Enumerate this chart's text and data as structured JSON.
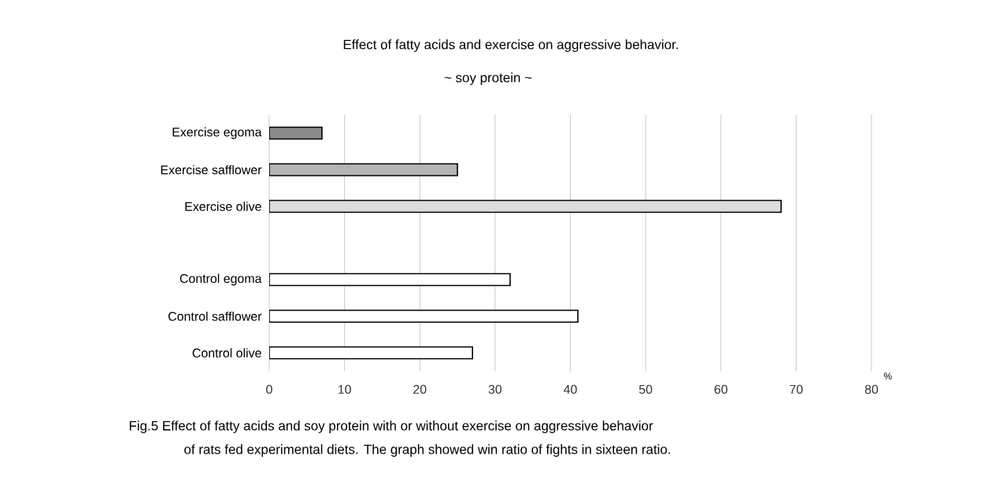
{
  "chart_data": {
    "type": "bar",
    "orientation": "horizontal",
    "title": "Effect of fatty acids and exercise on aggressive behavior.",
    "subtitle": "~ soy protein ~",
    "categories": [
      "Exercise egoma",
      "Exercise safflower",
      "Exercise olive",
      null,
      "Control egoma",
      "Control safflower",
      "Control olive"
    ],
    "values": [
      7,
      25,
      68,
      null,
      32,
      41,
      27
    ],
    "colors": [
      "#8a8a8a",
      "#b4b4b4",
      "#dcdcdc",
      "#ffffff",
      "#ffffff",
      "#ffffff",
      "#ffffff"
    ],
    "xlabel": "%",
    "xlim": [
      0,
      80
    ],
    "xticks": [
      0,
      10,
      20,
      30,
      40,
      50,
      60,
      70,
      80
    ],
    "grid": "x",
    "annotations": [
      "Fig.5  Effect of fatty acids and soy protein with or without exercise on aggressive behavior",
      "of rats fed experimental diets.  The graph showed win ratio of fights in sixteen ratio."
    ]
  }
}
